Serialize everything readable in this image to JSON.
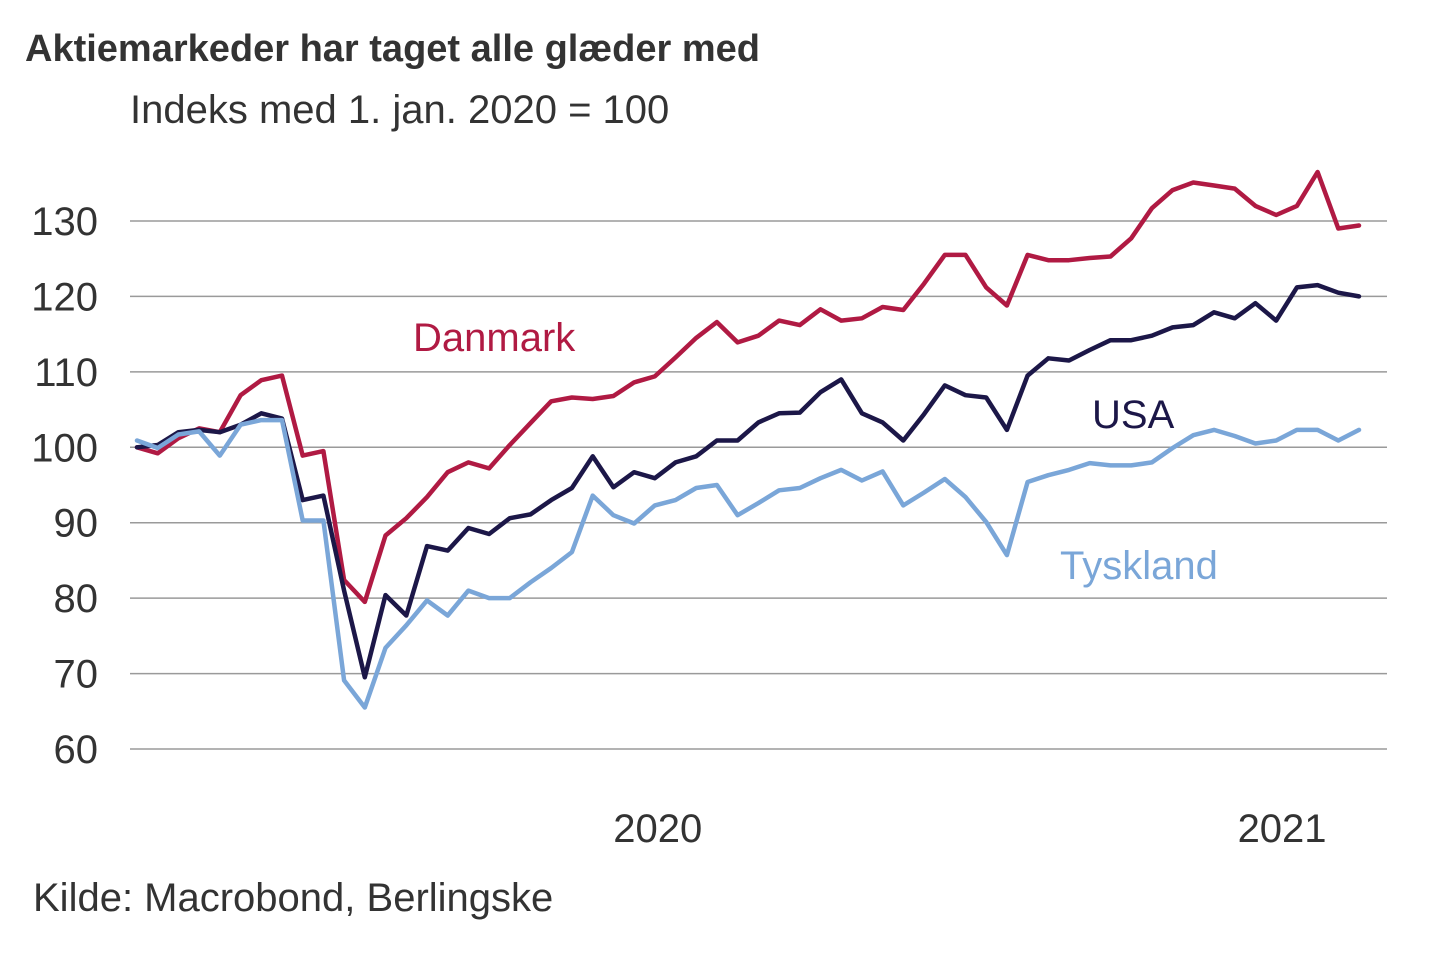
{
  "title": "Aktiemarkeder har taget alle glæder med",
  "subtitle": "Indeks med 1. jan. 2020 = 100",
  "source": "Kilde: Macrobond, Berlingske",
  "chart_data": {
    "type": "line",
    "title": "Aktiemarkeder har taget alle glæder med",
    "subtitle": "Indeks med 1. jan. 2020 = 100",
    "xlabel": "",
    "ylabel": "",
    "x_unit": "days since 2020-01-01",
    "x_step_days": 7,
    "xlim": [
      0,
      413
    ],
    "ylim": [
      60,
      130
    ],
    "yticks": [
      60,
      70,
      80,
      90,
      100,
      110,
      120,
      130
    ],
    "ytick_labels": [
      "60",
      "70",
      "80",
      "90",
      "100",
      "110",
      "120",
      "130"
    ],
    "xticks": [
      {
        "label": "2020",
        "day": 176
      },
      {
        "label": "2021",
        "day": 387
      }
    ],
    "grid": true,
    "legend": "inline labels",
    "series": [
      {
        "name": "Danmark",
        "color": "#b01a43",
        "values": [
          100,
          99.2,
          101.2,
          102.5,
          102.0,
          106.9,
          108.9,
          109.5,
          98.9,
          99.5,
          82.4,
          79.5,
          88.3,
          90.6,
          93.4,
          96.7,
          98.0,
          97.2,
          100.3,
          103.2,
          106.1,
          106.6,
          106.4,
          106.8,
          108.6,
          109.4,
          111.9,
          114.5,
          116.6,
          113.9,
          114.8,
          116.8,
          116.2,
          118.3,
          116.8,
          117.1,
          118.6,
          118.2,
          121.7,
          125.5,
          125.5,
          121.2,
          118.8,
          125.5,
          124.8,
          124.8,
          125.1,
          125.3,
          127.7,
          131.7,
          134.1,
          135.1,
          134.7,
          134.3,
          132.0,
          130.8,
          132.0,
          136.5,
          129.0,
          129.4
        ]
      },
      {
        "name": "USA",
        "color": "#1c1748",
        "values": [
          100,
          100.3,
          102.0,
          102.3,
          102.0,
          103.0,
          104.5,
          103.8,
          93.0,
          93.6,
          81.0,
          69.5,
          80.4,
          77.7,
          86.9,
          86.3,
          89.3,
          88.5,
          90.6,
          91.1,
          93.0,
          94.6,
          98.8,
          94.7,
          96.7,
          95.9,
          98.0,
          98.8,
          100.9,
          100.9,
          103.3,
          104.5,
          104.6,
          107.3,
          109.0,
          104.5,
          103.3,
          100.9,
          104.4,
          108.2,
          106.9,
          106.6,
          102.3,
          109.5,
          111.8,
          111.5,
          112.9,
          114.2,
          114.2,
          114.8,
          115.9,
          116.2,
          117.9,
          117.1,
          119.1,
          116.8,
          121.2,
          121.5,
          120.5,
          120.0
        ]
      },
      {
        "name": "Tyskland",
        "color": "#7aa6d8",
        "values": [
          100.9,
          99.9,
          101.7,
          102.1,
          98.9,
          103.0,
          103.6,
          103.6,
          90.3,
          90.3,
          69.1,
          65.5,
          73.4,
          76.4,
          79.7,
          77.7,
          81.0,
          80.0,
          80.0,
          82.1,
          84.0,
          86.1,
          93.6,
          91.0,
          89.9,
          92.3,
          93.0,
          94.6,
          95.0,
          91.0,
          92.6,
          94.3,
          94.6,
          95.9,
          97.0,
          95.6,
          96.8,
          92.3,
          94.0,
          95.8,
          93.4,
          90.1,
          85.7,
          95.4,
          96.3,
          97.0,
          97.9,
          97.6,
          97.6,
          98.0,
          99.9,
          101.6,
          102.3,
          101.5,
          100.5,
          100.9,
          102.3,
          102.3,
          100.9,
          102.3
        ]
      }
    ]
  }
}
